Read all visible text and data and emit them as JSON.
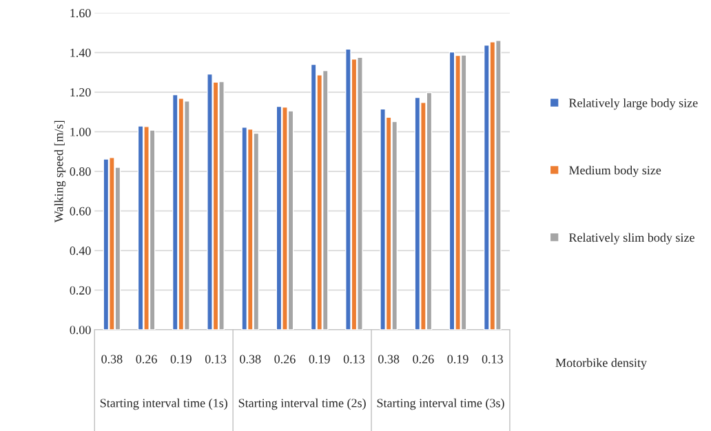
{
  "chart_data": {
    "type": "bar",
    "ylabel": "Walking speed [m/s]",
    "xlabel": "Motorbike density",
    "categories": [
      "0.38",
      "0.26",
      "0.19",
      "0.13",
      "0.38",
      "0.26",
      "0.19",
      "0.13",
      "0.38",
      "0.26",
      "0.19",
      "0.13"
    ],
    "annotations": [
      "Starting interval time (1s)",
      "Starting interval time (2s)",
      "Starting interval time (3s)"
    ],
    "series": [
      {
        "name": "Relatively large body size",
        "color": "#4472c4",
        "values": [
          0.862,
          1.029,
          1.187,
          1.291,
          1.023,
          1.128,
          1.34,
          1.417,
          1.115,
          1.173,
          1.403,
          1.437
        ]
      },
      {
        "name": "Medium body size",
        "color": "#ed7d31",
        "values": [
          0.87,
          1.026,
          1.169,
          1.25,
          1.013,
          1.124,
          1.287,
          1.367,
          1.073,
          1.148,
          1.385,
          1.454
        ]
      },
      {
        "name": "Relatively slim body size",
        "color": "#a5a5a5",
        "values": [
          0.82,
          1.008,
          1.155,
          1.253,
          0.992,
          1.105,
          1.309,
          1.376,
          1.051,
          1.197,
          1.387,
          1.461
        ]
      }
    ],
    "ylim": [
      0,
      1.6
    ],
    "yticks": [
      {
        "value": 0,
        "label": "0.00"
      },
      {
        "value": 0.2,
        "label": "0.20"
      },
      {
        "value": 0.4,
        "label": "0.40"
      },
      {
        "value": 0.6,
        "label": "0.60"
      },
      {
        "value": 0.8,
        "label": "0.80"
      },
      {
        "value": 1.0,
        "label": "1.00"
      },
      {
        "value": 1.2,
        "label": "1.20"
      },
      {
        "value": 1.4,
        "label": "1.40"
      },
      {
        "value": 1.6,
        "label": "1.60"
      }
    ],
    "grid": "y",
    "legend": "right"
  }
}
